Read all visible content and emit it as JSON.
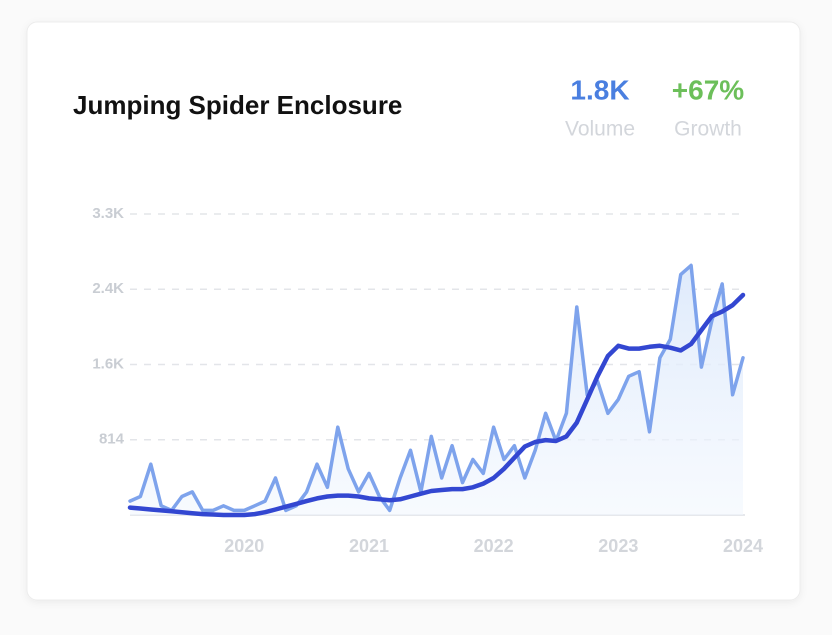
{
  "chart_data": {
    "type": "line",
    "title": "Jumping Spider Enclosure",
    "stats": [
      {
        "value": "1.8K",
        "label": "Volume",
        "color": "#4a7fe0"
      },
      {
        "value": "+67%",
        "label": "Growth",
        "color": "#6cbf5a"
      }
    ],
    "categories": [
      null,
      null,
      null,
      null,
      null,
      null,
      null,
      null,
      null,
      null,
      null,
      "2020",
      null,
      null,
      null,
      null,
      null,
      null,
      null,
      null,
      null,
      null,
      null,
      "2021",
      null,
      null,
      null,
      null,
      null,
      null,
      null,
      null,
      null,
      null,
      null,
      "2022",
      null,
      null,
      null,
      null,
      null,
      null,
      null,
      null,
      null,
      null,
      null,
      "2023",
      null,
      null,
      null,
      null,
      null,
      null,
      null,
      null,
      null,
      null,
      null,
      "2024"
    ],
    "series": [
      {
        "color": "#7ea3ec",
        "area": true,
        "values": [
          150,
          200,
          550,
          100,
          50,
          200,
          250,
          50,
          50,
          100,
          50,
          50,
          100,
          150,
          400,
          50,
          100,
          250,
          550,
          300,
          950,
          500,
          250,
          450,
          200,
          50,
          400,
          700,
          250,
          850,
          400,
          750,
          350,
          600,
          450,
          950,
          600,
          750,
          400,
          700,
          1100,
          800,
          1100,
          2250,
          1300,
          1450,
          1100,
          1250,
          1500,
          1550,
          900,
          1700,
          1900,
          2600,
          2700,
          1600,
          2100,
          2500,
          1300,
          1700
        ]
      },
      {
        "color": "#3347d1",
        "area": false,
        "values": [
          80,
          70,
          60,
          50,
          40,
          30,
          20,
          10,
          5,
          0,
          0,
          0,
          10,
          30,
          60,
          90,
          120,
          150,
          180,
          200,
          210,
          210,
          200,
          180,
          170,
          160,
          170,
          200,
          230,
          260,
          270,
          280,
          280,
          300,
          340,
          400,
          500,
          620,
          740,
          790,
          810,
          800,
          850,
          1000,
          1250,
          1500,
          1720,
          1830,
          1800,
          1800,
          1820,
          1830,
          1810,
          1780,
          1850,
          2000,
          2150,
          2200,
          2270,
          2380
        ]
      }
    ],
    "ylim": [
      0,
      3256
    ],
    "yticks": [
      814,
      {
        "value": 1628,
        "label": "1.6K"
      },
      {
        "value": 2442,
        "label": "2.4K"
      },
      {
        "value": 3256,
        "label": "3.3K"
      }
    ],
    "grid": true
  }
}
